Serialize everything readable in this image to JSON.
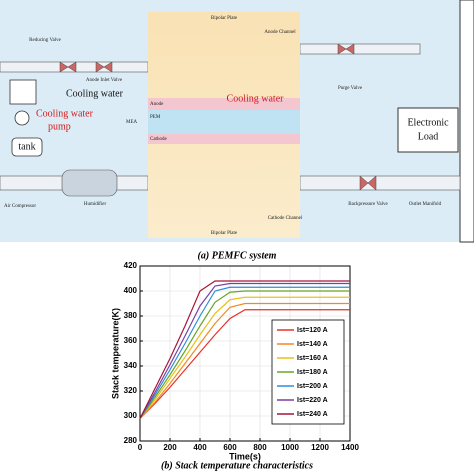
{
  "diagram": {
    "labels": [
      "Bipolar Plate",
      "Anode Channel",
      "Reducing Valve",
      "Anode Inlet Valve",
      "Cooling water",
      "Cooling water",
      "Cooling water",
      "pump",
      "tank",
      "MEA",
      "Anode",
      "PEM",
      "Cathode",
      "Purge Valve",
      "Electronic",
      "Load",
      "Air Compressor",
      "Humidifier",
      "Backpressure Valve",
      "Outlet Manifold",
      "Cathode Channel",
      "Bipolar Plate"
    ]
  },
  "captions": [
    "(a)  PEMFC system",
    "(b) Stack temperature characteristics"
  ],
  "chart_data": {
    "type": "line",
    "xlabel": "Time(s)",
    "ylabel": "Stack temperature(K)",
    "x": [
      0,
      100,
      200,
      300,
      400,
      500,
      600,
      700,
      800,
      1000,
      1200,
      1400
    ],
    "xlim": [
      0,
      1400
    ],
    "xticks": [
      0,
      200,
      400,
      600,
      800,
      1000,
      1200,
      1400
    ],
    "ylim": [
      280,
      420
    ],
    "yticks": [
      280,
      300,
      320,
      340,
      360,
      380,
      400,
      420
    ],
    "grid": true,
    "legend": "right",
    "series": [
      {
        "name": "Ist=120 A",
        "color": "#e8312a",
        "values": [
          298,
          310,
          323,
          337,
          351,
          365,
          378,
          385,
          385,
          385,
          385,
          385
        ]
      },
      {
        "name": "Ist=140 A",
        "color": "#f08a24",
        "values": [
          298,
          311,
          326,
          342,
          358,
          374,
          387,
          390,
          390,
          390,
          390,
          390
        ]
      },
      {
        "name": "Ist=160 A",
        "color": "#e8c21a",
        "values": [
          298,
          313,
          330,
          347,
          365,
          382,
          393,
          395,
          395,
          395,
          395,
          395
        ]
      },
      {
        "name": "Ist=180 A",
        "color": "#6aa527",
        "values": [
          298,
          315,
          333,
          352,
          372,
          391,
          399,
          400,
          400,
          400,
          400,
          400
        ]
      },
      {
        "name": "Ist=200 A",
        "color": "#2d8fd6",
        "values": [
          298,
          317,
          337,
          358,
          380,
          400,
          403,
          403,
          403,
          403,
          403,
          403
        ]
      },
      {
        "name": "Ist=220 A",
        "color": "#7a3fa6",
        "values": [
          298,
          319,
          341,
          364,
          388,
          404,
          406,
          406,
          406,
          406,
          406,
          406
        ]
      },
      {
        "name": "Ist=240 A",
        "color": "#a3173a",
        "values": [
          298,
          322,
          346,
          372,
          400,
          408,
          408,
          408,
          408,
          408,
          408,
          408
        ]
      }
    ]
  }
}
